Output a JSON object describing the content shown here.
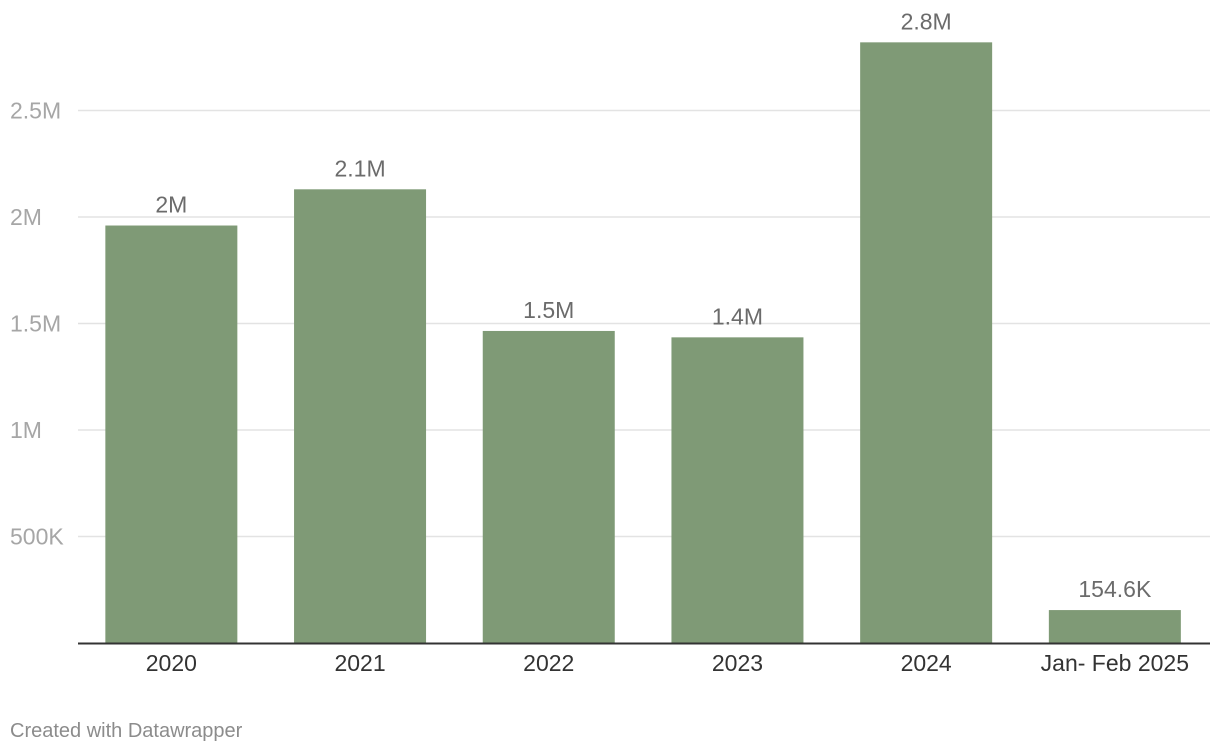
{
  "chart_data": {
    "type": "bar",
    "categories": [
      "2020",
      "2021",
      "2022",
      "2023",
      "2024",
      "Jan- Feb 2025"
    ],
    "values": [
      1960000,
      2130000,
      1465000,
      1435000,
      2820000,
      154600
    ],
    "data_labels": [
      "2M",
      "2.1M",
      "1.5M",
      "1.4M",
      "2.8M",
      "154.6K"
    ],
    "yticks": [
      {
        "value": 500000,
        "label": "500K"
      },
      {
        "value": 1000000,
        "label": "1M"
      },
      {
        "value": 1500000,
        "label": "1.5M"
      },
      {
        "value": 2000000,
        "label": "2M"
      },
      {
        "value": 2500000,
        "label": "2.5M"
      }
    ],
    "ylim": [
      0,
      3000000
    ],
    "grid": true,
    "bar_color": "#7f9a76",
    "title": "",
    "xlabel": "",
    "ylabel": ""
  },
  "footer": {
    "credit": "Created with Datawrapper"
  }
}
